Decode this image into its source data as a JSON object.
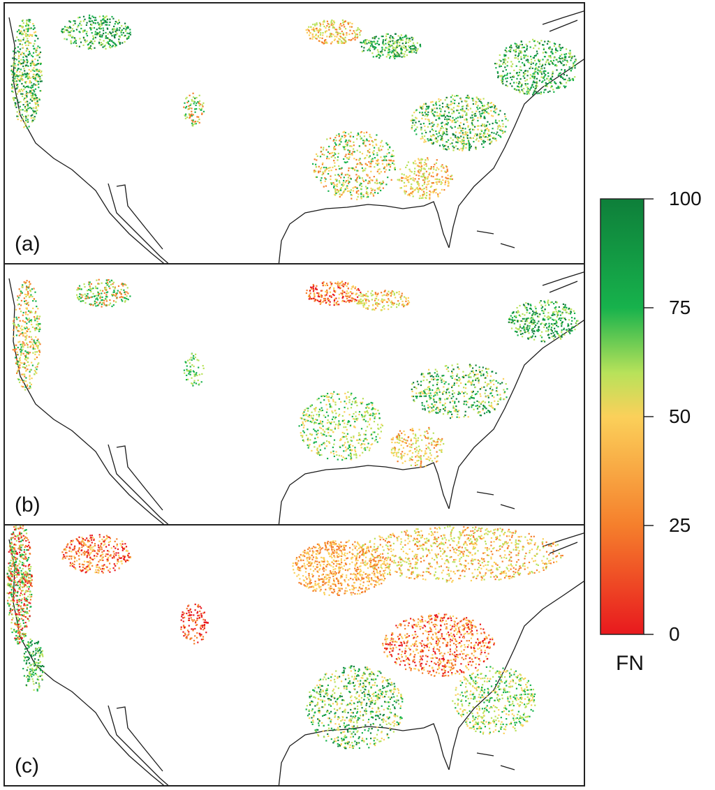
{
  "panels": [
    {
      "id": "a",
      "label": "(a)"
    },
    {
      "id": "b",
      "label": "(b)"
    },
    {
      "id": "c",
      "label": "(c)"
    }
  ],
  "colorbar": {
    "title": "FN",
    "ticks": [
      "100",
      "75",
      "50",
      "25",
      "0"
    ],
    "tick_values": [
      100,
      75,
      50,
      25,
      0
    ],
    "range": [
      0,
      100
    ],
    "colors": {
      "0": "#e8191e",
      "25": "#f57f2c",
      "50": "#fbd05a",
      "60": "#b8e25a",
      "75": "#17b24c",
      "100": "#0e7f3a"
    }
  },
  "map_colors": {
    "outline": "#1a1a1a",
    "background": "#ffffff"
  }
}
